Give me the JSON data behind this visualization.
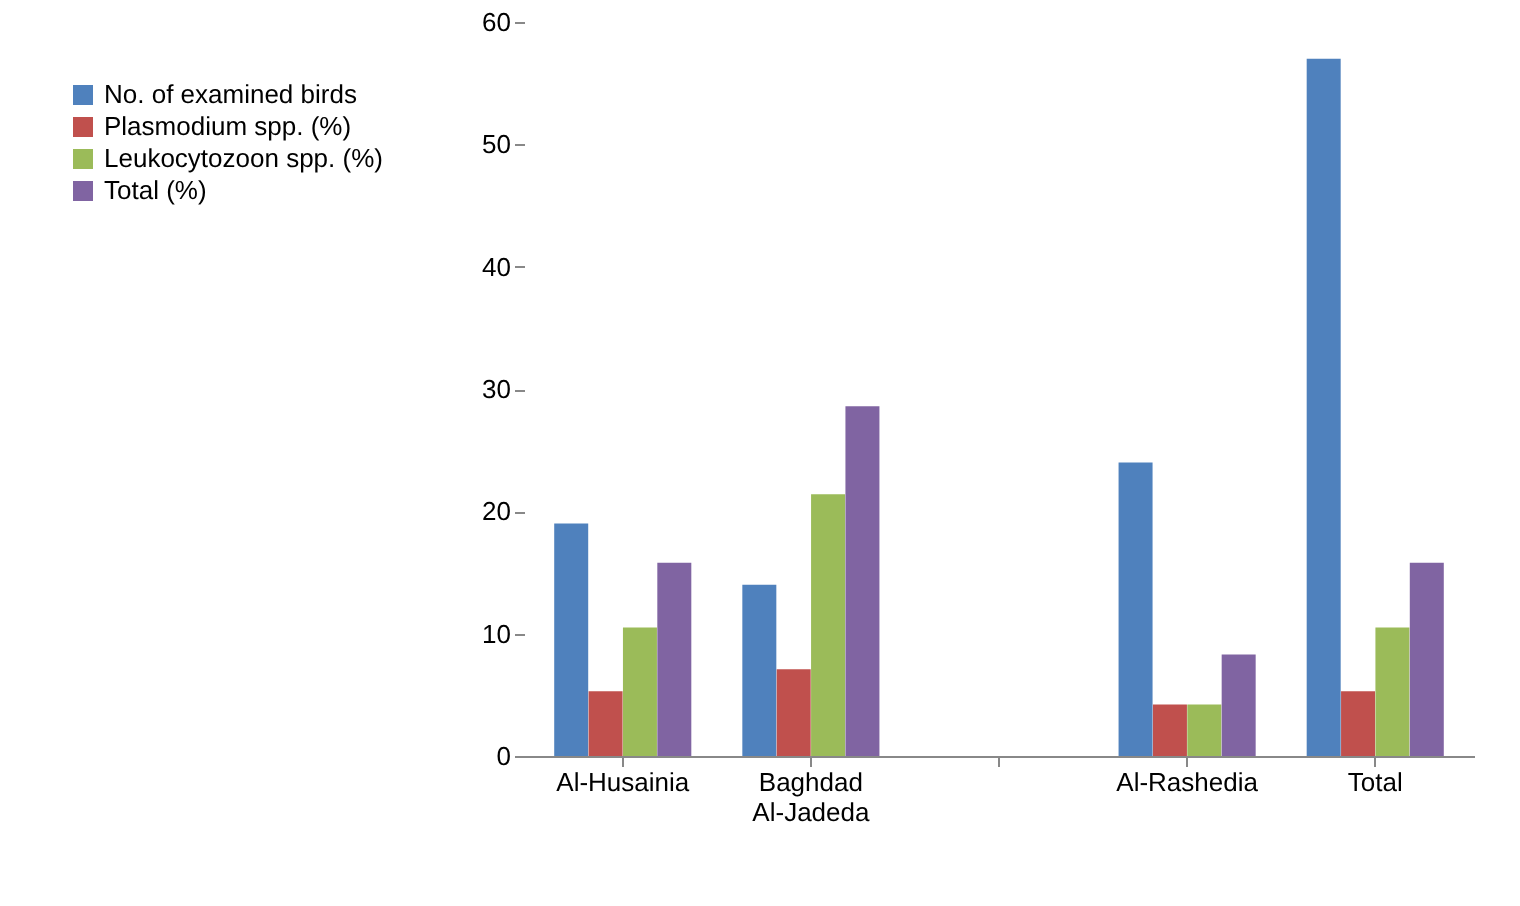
{
  "chart_data": {
    "type": "bar",
    "categories": [
      "Al-Husainia",
      "Baghdad Al-Jadeda",
      null,
      "Al-Rashedia",
      "Total"
    ],
    "series": [
      {
        "name": "No. of examined birds",
        "color": "#4f81bd",
        "values": [
          19,
          14,
          null,
          24,
          57
        ]
      },
      {
        "name": "Plasmodium spp. (%)",
        "color": "#c0504d",
        "values": [
          5.3,
          7.1,
          null,
          4.2,
          5.3
        ]
      },
      {
        "name": "Leukocytozoon spp. (%)",
        "color": "#9bbb59",
        "values": [
          10.5,
          21.4,
          null,
          4.2,
          10.5
        ]
      },
      {
        "name": "Total (%)",
        "color": "#8064a2",
        "values": [
          15.8,
          28.6,
          null,
          8.3,
          15.8
        ]
      }
    ],
    "ylim": [
      0,
      60
    ],
    "yticks": [
      0,
      10,
      20,
      30,
      40,
      50,
      60
    ],
    "grid": false,
    "legend": "left"
  }
}
